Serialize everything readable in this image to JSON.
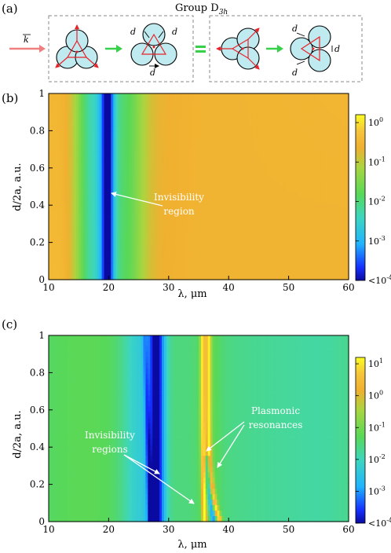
{
  "panel_a": {
    "label": "(a)",
    "group_prefix": "Group D",
    "group_sub": "3h",
    "k_label": "k",
    "d_label": "d",
    "equals_symbol": "="
  },
  "colors": {
    "sphere_fill": "#bfeaf0",
    "triangle": "#e8232a",
    "arrow_green": "#37d04a",
    "arrow_pink": "#ef8080"
  },
  "chart_data": [
    {
      "panel": "(b)",
      "type": "heatmap",
      "xlabel": "λ, μm",
      "ylabel": "d/2a, a.u.",
      "xlim": [
        10,
        60
      ],
      "ylim": [
        0,
        1
      ],
      "xticks": [
        10,
        20,
        30,
        40,
        50,
        60
      ],
      "yticks": [
        0,
        0.2,
        0.4,
        0.6,
        0.8,
        1
      ],
      "ytick_labels": [
        "0",
        "0.2",
        "0.4",
        "0.6",
        "0.8",
        "1"
      ],
      "colorbar": {
        "scale": "log",
        "ticks": [
          "10^0",
          "10^-1",
          "10^-2",
          "10^-3",
          "<10^-4"
        ],
        "range": [
          -4,
          0.2
        ]
      },
      "features": [
        {
          "type": "minimum",
          "x": 19.8,
          "width": 1.2
        }
      ],
      "annotation": {
        "text_lines": [
          "Invisibility",
          "region"
        ],
        "points_to": {
          "x": 20,
          "y": 0.46
        }
      }
    },
    {
      "panel": "(c)",
      "type": "heatmap",
      "xlabel": "λ, μm",
      "ylabel": "d/2a, a.u.",
      "xlim": [
        10,
        60
      ],
      "ylim": [
        0,
        1
      ],
      "xticks": [
        10,
        20,
        30,
        40,
        50,
        60
      ],
      "yticks": [
        0,
        0.2,
        0.4,
        0.6,
        0.8,
        1
      ],
      "ytick_labels": [
        "0",
        "0.2",
        "0.4",
        "0.6",
        "0.8",
        "1"
      ],
      "colorbar": {
        "scale": "log",
        "ticks": [
          "10^1",
          "10^0",
          "10^-1",
          "10^-2",
          "10^-3",
          "<10^-4"
        ],
        "range": [
          -4,
          1.2
        ]
      },
      "features": [
        {
          "type": "minimum",
          "x": 28.0,
          "width": 1.7
        },
        {
          "type": "minimum_branch",
          "x_at_top": 26.0,
          "x_at_bottom": 27.0
        },
        {
          "type": "minimum_curve",
          "x_at_top": 36.2,
          "x_at_bottom": 37.5
        },
        {
          "type": "resonance",
          "x_at_top": 35.7,
          "x_at_bottom": 36.0
        },
        {
          "type": "resonance",
          "x_at_top": 36.6,
          "x_at_bottom": 38.6
        }
      ],
      "annotations": [
        {
          "text_lines": [
            "Invisibility",
            "regions"
          ],
          "points_to": [
            {
              "x": 29,
              "y": 0.15
            },
            {
              "x": 36.3,
              "y": 0.09
            }
          ]
        },
        {
          "text_lines": [
            "Plasmonic",
            "resonances"
          ],
          "points_to": [
            {
              "x": 36,
              "y": 0.36
            },
            {
              "x": 38,
              "y": 0.3
            }
          ]
        }
      ]
    }
  ]
}
